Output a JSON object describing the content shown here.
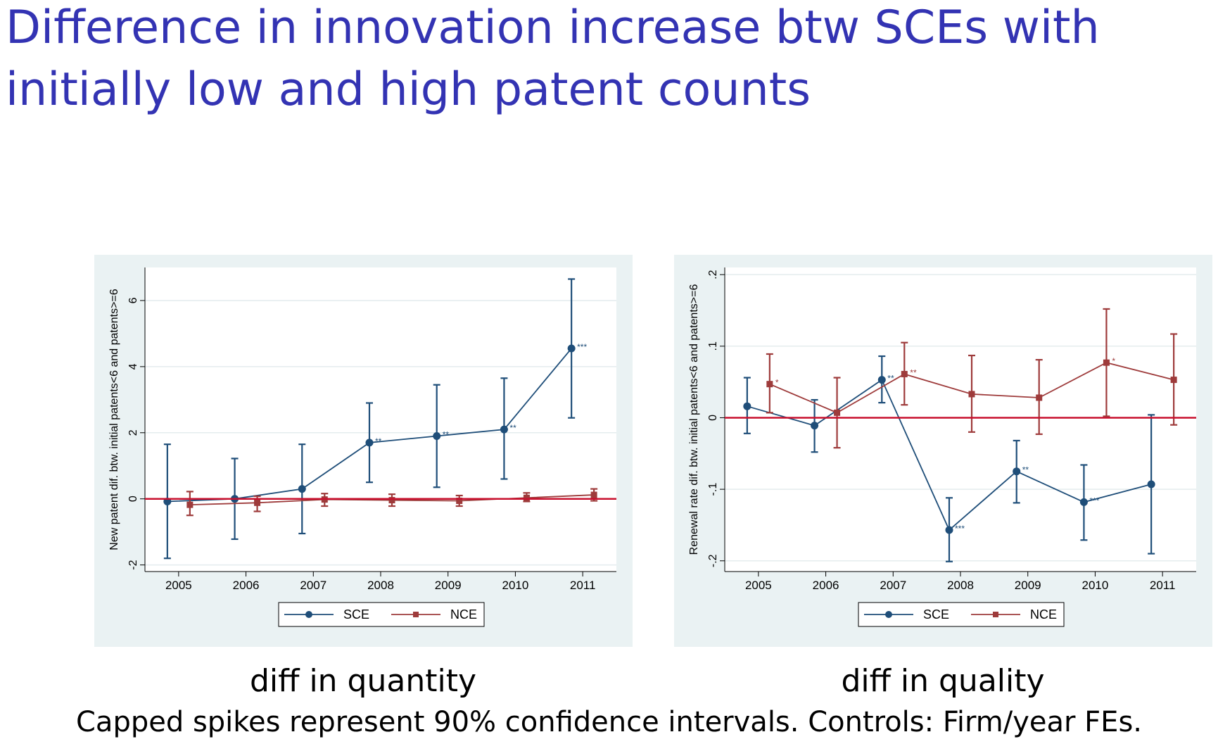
{
  "slide": {
    "title": "Difference in innovation increase btw SCEs with initially low and high patent counts",
    "footnote": "Capped spikes represent 90% confidence intervals. Controls: Firm/year FEs."
  },
  "colors": {
    "sce": "#1f4e79",
    "nce": "#9e3b3b",
    "zero_line": "#c8102e",
    "panel_bg": "#eaf2f3",
    "title": "#3333b3"
  },
  "chart_data": [
    {
      "type": "line",
      "caption": "diff in quantity",
      "xlabel": "",
      "ylabel": "New patent dif. btw. initial patents<6 and patents>=6",
      "categories": [
        "2005",
        "2006",
        "2007",
        "2008",
        "2009",
        "2010",
        "2011"
      ],
      "yticks": [
        -2,
        0,
        2,
        4,
        6
      ],
      "ytick_labels": [
        "-2",
        "0",
        "2",
        "4",
        "6"
      ],
      "ylim": [
        -2.2,
        7.0
      ],
      "zero_line": 0,
      "grid": true,
      "legend_position": "bottom",
      "series": [
        {
          "name": "SCE",
          "marker": "circle",
          "values": [
            -0.08,
            0.0,
            0.3,
            1.7,
            1.9,
            2.1,
            4.55
          ],
          "ci_low": [
            -1.8,
            -1.22,
            -1.05,
            0.5,
            0.35,
            0.6,
            2.45
          ],
          "ci_high": [
            1.65,
            1.22,
            1.65,
            2.9,
            3.45,
            3.65,
            6.65
          ],
          "stars": [
            "",
            "",
            "",
            "**",
            "**",
            "**",
            "***"
          ]
        },
        {
          "name": "NCE",
          "marker": "square",
          "values": [
            -0.18,
            -0.12,
            -0.02,
            -0.04,
            -0.06,
            0.03,
            0.12
          ],
          "ci_low": [
            -0.5,
            -0.38,
            -0.22,
            -0.22,
            -0.22,
            -0.08,
            -0.06
          ],
          "ci_high": [
            0.22,
            0.08,
            0.16,
            0.14,
            0.1,
            0.18,
            0.3
          ],
          "stars": [
            "",
            "",
            "",
            "",
            "",
            "",
            ""
          ]
        }
      ]
    },
    {
      "type": "line",
      "caption": "diff in quality",
      "xlabel": "",
      "ylabel": "Renewal rate dif. btw. initial patents<6 and patents>=6",
      "categories": [
        "2005",
        "2006",
        "2007",
        "2008",
        "2009",
        "2010",
        "2011"
      ],
      "yticks": [
        -0.2,
        -0.1,
        0,
        0.1,
        0.2
      ],
      "ytick_labels": [
        "-.2",
        "-.1",
        "0",
        ".1",
        ".2"
      ],
      "ylim": [
        -0.215,
        0.21
      ],
      "zero_line": 0,
      "grid": true,
      "legend_position": "bottom",
      "series": [
        {
          "name": "SCE",
          "marker": "circle",
          "values": [
            0.016,
            -0.011,
            0.053,
            -0.157,
            -0.075,
            -0.118,
            -0.093
          ],
          "ci_low": [
            -0.022,
            -0.048,
            0.021,
            -0.201,
            -0.119,
            -0.171,
            -0.19
          ],
          "ci_high": [
            0.056,
            0.025,
            0.086,
            -0.112,
            -0.032,
            -0.066,
            0.004
          ],
          "stars": [
            "",
            "",
            "**",
            "***",
            "**",
            "***",
            ""
          ]
        },
        {
          "name": "NCE",
          "marker": "square",
          "values": [
            0.047,
            0.007,
            0.061,
            0.033,
            0.028,
            0.077,
            0.053
          ],
          "ci_low": [
            0.007,
            -0.042,
            0.018,
            -0.02,
            -0.023,
            0.002,
            -0.01
          ],
          "ci_high": [
            0.089,
            0.056,
            0.105,
            0.087,
            0.081,
            0.152,
            0.117
          ],
          "stars": [
            "*",
            "",
            "**",
            "",
            "",
            "*",
            ""
          ]
        }
      ]
    }
  ]
}
